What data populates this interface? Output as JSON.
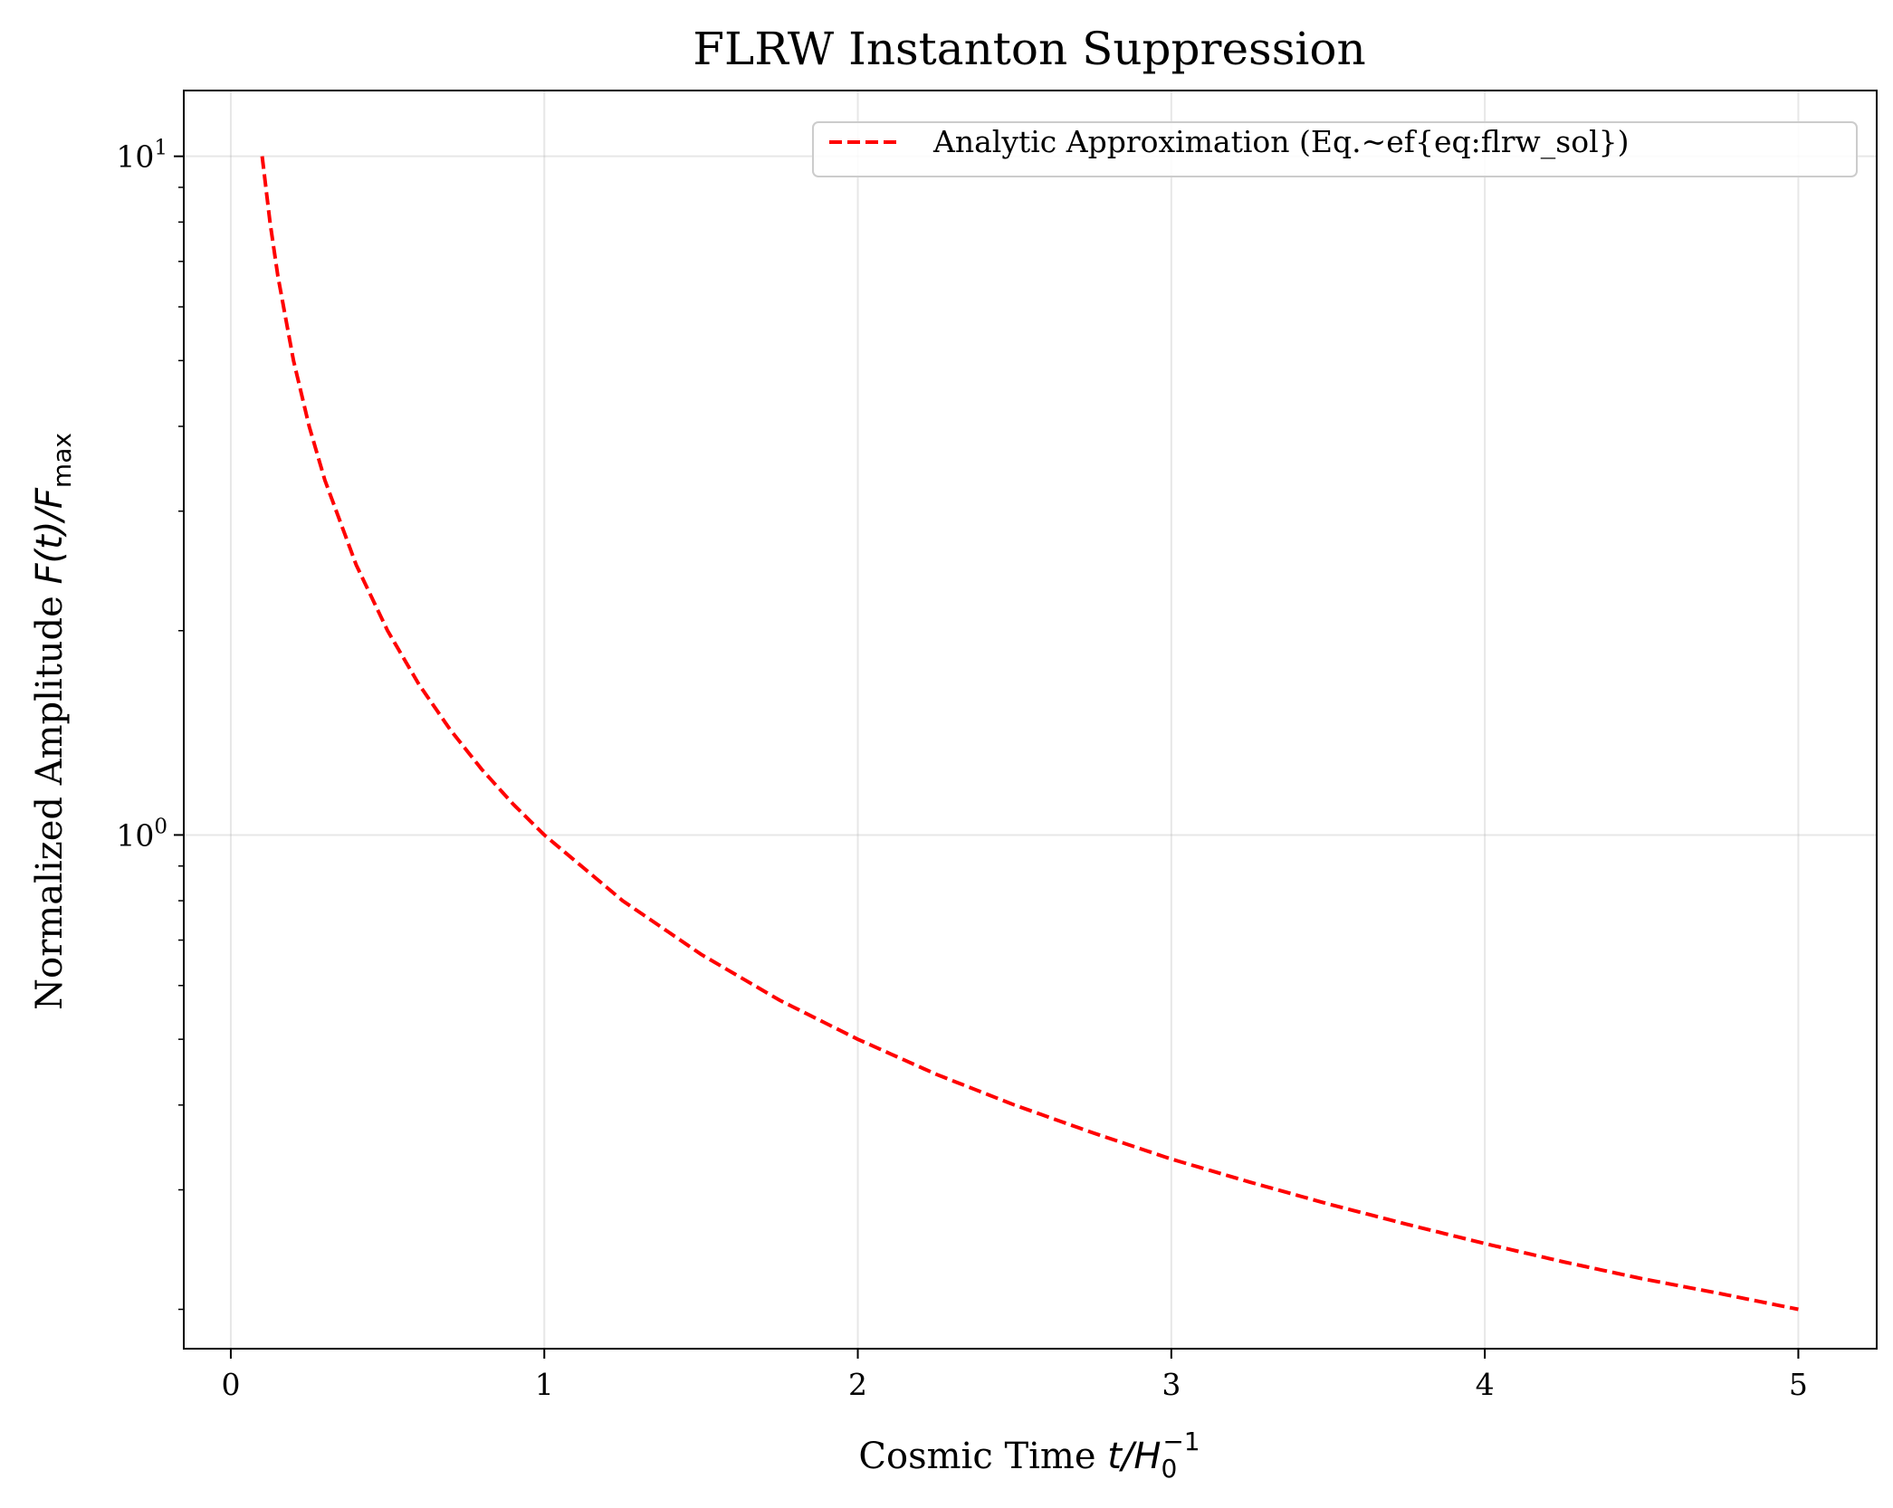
{
  "chart_data": {
    "type": "line",
    "title": "FLRW Instanton Suppression",
    "xlabel": {
      "text": "Cosmic Time ",
      "var": "t/H",
      "sub": "0",
      "sup": "−1"
    },
    "ylabel": {
      "text": "Normalized Amplitude ",
      "var": "F(t)/F",
      "sub": "max"
    },
    "xlim": [
      -0.15,
      5.25
    ],
    "ylim": [
      0.175,
      12.5
    ],
    "yscale": "log",
    "grid": true,
    "legend_position": "top-right",
    "x_ticks": [
      0,
      1,
      2,
      3,
      4,
      5
    ],
    "x_tick_labels": [
      "0",
      "1",
      "2",
      "3",
      "4",
      "5"
    ],
    "y_major_ticks": [
      {
        "value": 1,
        "base": "10",
        "exp": "0"
      },
      {
        "value": 10,
        "base": "10",
        "exp": "1"
      }
    ],
    "y_minor_ticks": [
      0.2,
      0.3,
      0.4,
      0.5,
      0.6,
      0.7,
      0.8,
      0.9,
      2,
      3,
      4,
      5,
      6,
      7,
      8,
      9
    ],
    "series": [
      {
        "name": "Analytic Approximation (Eq.~\u0007ef{eq:flrw_sol})",
        "color": "#ff0000",
        "line_style": "dashed",
        "x": [
          0.1,
          0.125,
          0.15,
          0.2,
          0.25,
          0.3,
          0.4,
          0.5,
          0.6,
          0.7,
          0.8,
          0.9,
          1.0,
          1.25,
          1.5,
          1.75,
          2.0,
          2.25,
          2.5,
          2.75,
          3.0,
          3.25,
          3.5,
          3.75,
          4.0,
          4.25,
          4.5,
          4.75,
          5.0
        ],
        "y": [
          10.0,
          8.0,
          6.667,
          5.0,
          4.0,
          3.333,
          2.5,
          2.0,
          1.667,
          1.429,
          1.25,
          1.111,
          1.0,
          0.8,
          0.667,
          0.571,
          0.5,
          0.444,
          0.4,
          0.364,
          0.333,
          0.308,
          0.286,
          0.267,
          0.25,
          0.235,
          0.222,
          0.211,
          0.2
        ]
      }
    ]
  }
}
